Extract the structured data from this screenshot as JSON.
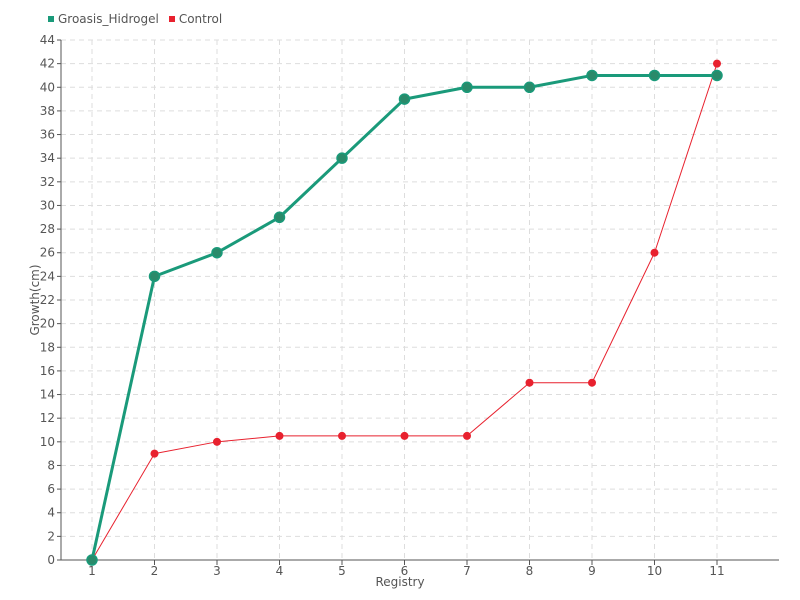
{
  "chart_data": {
    "type": "line",
    "x": [
      1,
      2,
      3,
      4,
      5,
      6,
      7,
      8,
      9,
      10,
      11
    ],
    "xlabel": "Registry",
    "ylabel": "Growth(cm)",
    "ylim": [
      0,
      44
    ],
    "ytick_step": 2,
    "grid": true,
    "legend_position": "top-left",
    "series": [
      {
        "name": "Groasis_Hidrogel",
        "color": "#1a9a7a",
        "values": [
          0,
          24,
          26,
          29,
          34,
          39,
          40,
          40,
          41,
          41,
          41
        ]
      },
      {
        "name": "Control",
        "color": "#e8212e",
        "values": [
          0,
          9,
          10,
          10.5,
          10.5,
          10.5,
          10.5,
          15,
          15,
          26,
          42
        ]
      }
    ]
  }
}
